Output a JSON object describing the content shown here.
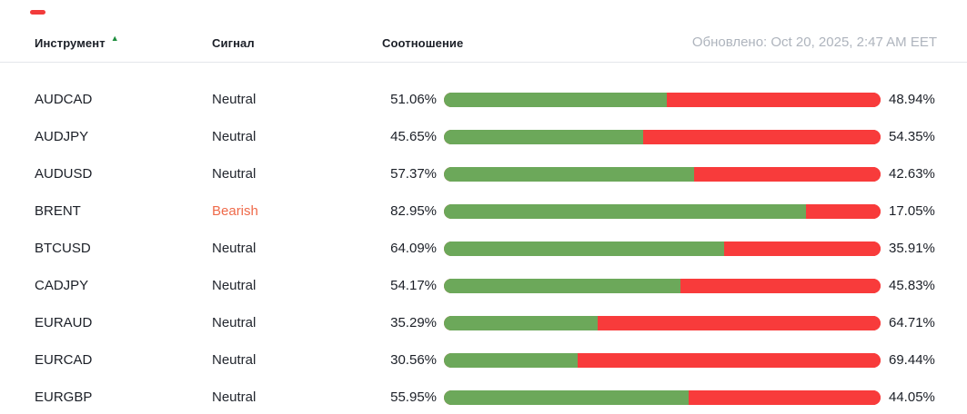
{
  "header": {
    "columns": [
      {
        "key": "instrument",
        "label": "Инструмент",
        "sorted": "asc"
      },
      {
        "key": "signal",
        "label": "Сигнал"
      },
      {
        "key": "ratio",
        "label": "Соотношение"
      }
    ],
    "sort_icon": "▲",
    "updated": "Обновлено: Oct 20, 2025, 2:47 AM EET"
  },
  "table": {
    "rows": [
      {
        "instrument": "AUDCAD",
        "signal": "Neutral",
        "buy_label": "51.06%",
        "sell_label": "48.94%",
        "buy_pct": 51.06,
        "sell_pct": 48.94
      },
      {
        "instrument": "AUDJPY",
        "signal": "Neutral",
        "buy_label": "45.65%",
        "sell_label": "54.35%",
        "buy_pct": 45.65,
        "sell_pct": 54.35
      },
      {
        "instrument": "AUDUSD",
        "signal": "Neutral",
        "buy_label": "57.37%",
        "sell_label": "42.63%",
        "buy_pct": 57.37,
        "sell_pct": 42.63
      },
      {
        "instrument": "BRENT",
        "signal": "Bearish",
        "buy_label": "82.95%",
        "sell_label": "17.05%",
        "buy_pct": 82.95,
        "sell_pct": 17.05
      },
      {
        "instrument": "BTCUSD",
        "signal": "Neutral",
        "buy_label": "64.09%",
        "sell_label": "35.91%",
        "buy_pct": 64.09,
        "sell_pct": 35.91
      },
      {
        "instrument": "CADJPY",
        "signal": "Neutral",
        "buy_label": "54.17%",
        "sell_label": "45.83%",
        "buy_pct": 54.17,
        "sell_pct": 45.83
      },
      {
        "instrument": "EURAUD",
        "signal": "Neutral",
        "buy_label": "35.29%",
        "sell_label": "64.71%",
        "buy_pct": 35.29,
        "sell_pct": 64.71
      },
      {
        "instrument": "EURCAD",
        "signal": "Neutral",
        "buy_label": "30.56%",
        "sell_label": "69.44%",
        "buy_pct": 30.56,
        "sell_pct": 69.44
      },
      {
        "instrument": "EURGBP",
        "signal": "Neutral",
        "buy_label": "55.95%",
        "sell_label": "44.05%",
        "buy_pct": 55.95,
        "sell_pct": 44.05
      }
    ]
  },
  "colors": {
    "buy_green": "#6ca85a",
    "sell_red": "#f83b3b",
    "bearish_orange": "#ef6a4a",
    "sort_green": "#1e8e3e",
    "text_dark": "#1b1f27",
    "muted_gray": "#aeb4bd",
    "header_border": "#e4e7eb"
  }
}
